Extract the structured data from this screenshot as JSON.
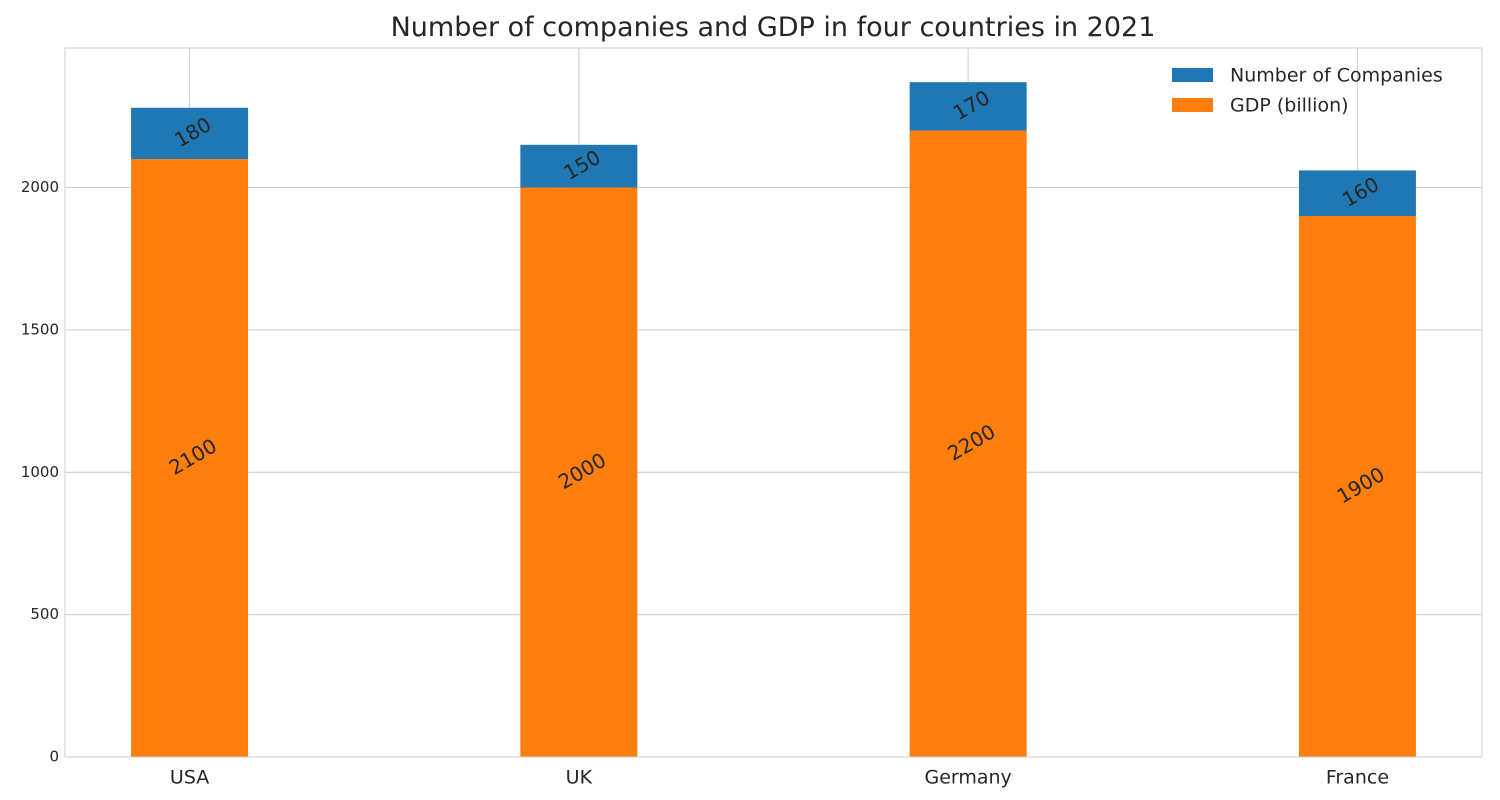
{
  "chart_data": {
    "type": "bar",
    "stacked": true,
    "title": "Number of companies and GDP in four countries in 2021",
    "xlabel": "",
    "ylabel": "",
    "categories": [
      "USA",
      "UK",
      "Germany",
      "France"
    ],
    "series": [
      {
        "name": "GDP (billion)",
        "values": [
          2100,
          2000,
          2200,
          1900
        ],
        "color": "#ff7f0e"
      },
      {
        "name": "Number of Companies",
        "values": [
          180,
          150,
          170,
          160
        ],
        "color": "#1f77b4"
      }
    ],
    "ylim": [
      0,
      2490
    ],
    "yticks": [
      0,
      500,
      1000,
      1500,
      2000
    ],
    "grid": true,
    "legend_position": "top-right",
    "legend_order": [
      "Number of Companies",
      "GDP (billion)"
    ]
  }
}
